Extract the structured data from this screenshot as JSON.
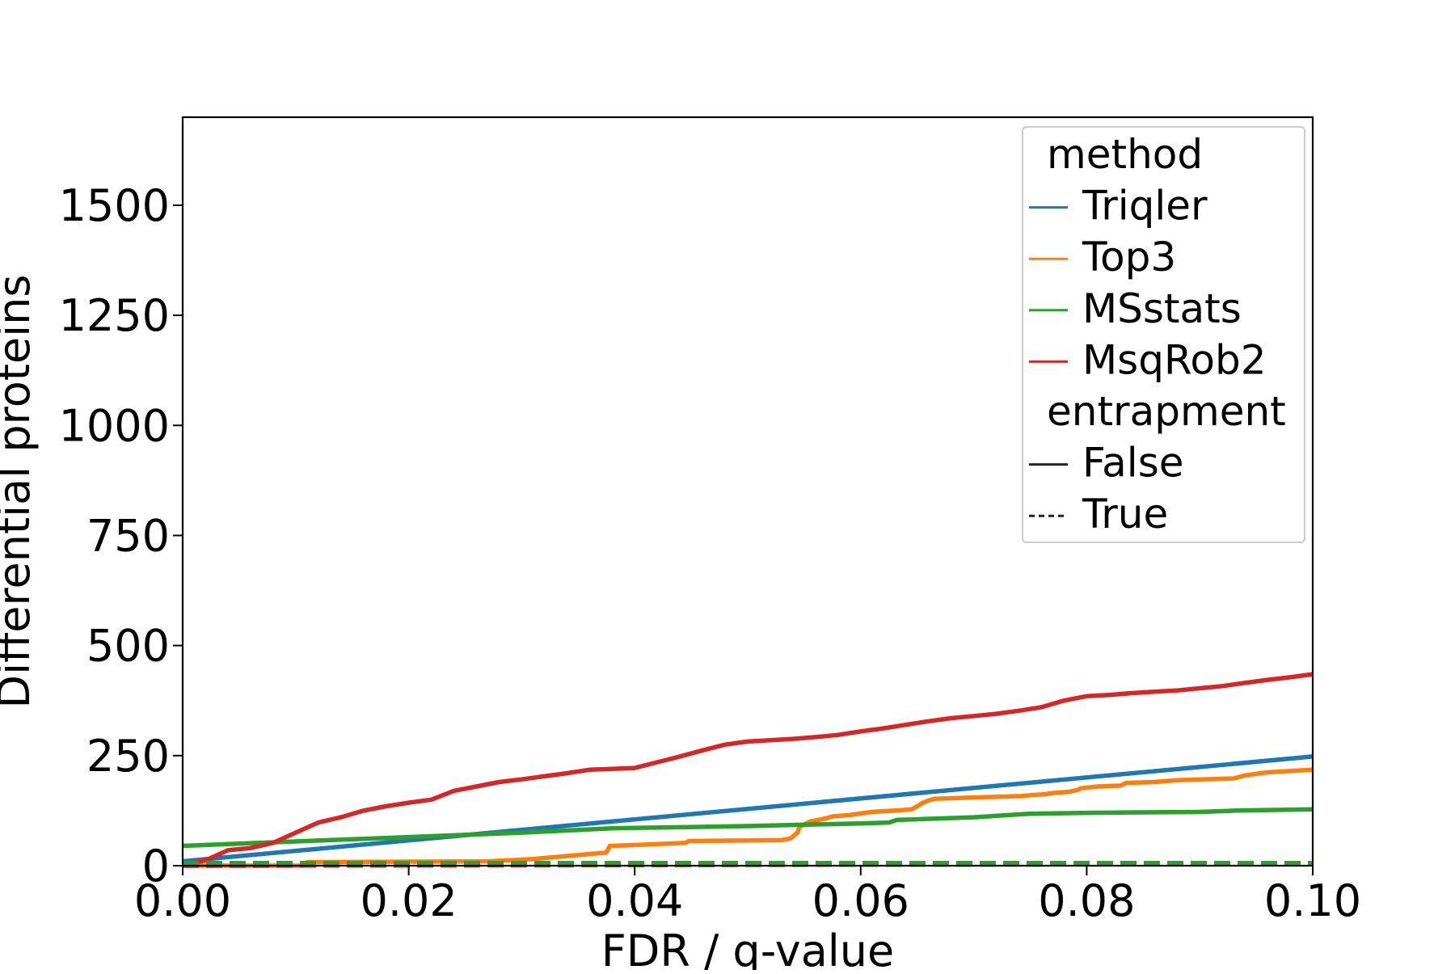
{
  "chart_data": {
    "type": "line",
    "title": "",
    "xlabel": "FDR / q-value",
    "ylabel": "Differential proteins",
    "xlim": [
      0.0,
      0.1
    ],
    "ylim": [
      0,
      1700
    ],
    "xticks": [
      "0.00",
      "0.02",
      "0.04",
      "0.06",
      "0.08",
      "0.10"
    ],
    "yticks": [
      "0",
      "250",
      "500",
      "750",
      "1000",
      "1250",
      "1500"
    ],
    "grid": false,
    "legend": {
      "placement": "top-right",
      "groups": [
        {
          "title": "method",
          "entries": [
            {
              "label": "Triqler",
              "color": "#1f77b4",
              "dash": "solid"
            },
            {
              "label": "Top3",
              "color": "#ff7f0e",
              "dash": "solid"
            },
            {
              "label": "MSstats",
              "color": "#2ca02c",
              "dash": "solid"
            },
            {
              "label": "MsqRob2",
              "color": "#d62728",
              "dash": "solid"
            }
          ]
        },
        {
          "title": "entrapment",
          "entries": [
            {
              "label": "False",
              "color": "#222222",
              "dash": "solid"
            },
            {
              "label": "True",
              "color": "#222222",
              "dash": "dashed"
            }
          ]
        }
      ]
    },
    "series": [
      {
        "name": "Triqler",
        "entrapment": "False",
        "color": "#1f77b4",
        "dash": "solid",
        "x": [
          0.0,
          0.1
        ],
        "y": [
          10,
          248
        ]
      },
      {
        "name": "Top3",
        "entrapment": "False",
        "color": "#ff7f0e",
        "dash": "solid",
        "x": [
          0.0,
          0.0105,
          0.011,
          0.027,
          0.031,
          0.0375,
          0.0378,
          0.041,
          0.0445,
          0.0448,
          0.053,
          0.0538,
          0.0544,
          0.0546,
          0.0555,
          0.057,
          0.0575,
          0.059,
          0.061,
          0.0635,
          0.0645,
          0.0648,
          0.0652,
          0.0655,
          0.066,
          0.0665,
          0.07,
          0.0742,
          0.075,
          0.0762,
          0.077,
          0.0785,
          0.0788,
          0.0792,
          0.0795,
          0.081,
          0.083,
          0.0835,
          0.086,
          0.088,
          0.09,
          0.093,
          0.094,
          0.096,
          0.1
        ],
        "y": [
          0,
          0,
          8,
          10,
          15,
          30,
          45,
          48,
          52,
          56,
          58,
          62,
          75,
          88,
          100,
          108,
          112,
          115,
          122,
          126,
          128,
          132,
          138,
          143,
          148,
          152,
          155,
          158,
          160,
          162,
          165,
          168,
          170,
          172,
          176,
          180,
          182,
          188,
          190,
          194,
          196,
          198,
          205,
          212,
          218
        ]
      },
      {
        "name": "MSstats",
        "entrapment": "False",
        "color": "#2ca02c",
        "dash": "solid",
        "x": [
          0.0,
          0.01,
          0.02,
          0.03,
          0.038,
          0.05,
          0.055,
          0.06,
          0.0625,
          0.0632,
          0.07,
          0.075,
          0.08,
          0.09,
          0.093,
          0.1
        ],
        "y": [
          45,
          55,
          65,
          75,
          85,
          90,
          93,
          96,
          98,
          104,
          110,
          118,
          120,
          122,
          125,
          128
        ]
      },
      {
        "name": "MsqRob2",
        "entrapment": "False",
        "color": "#d62728",
        "dash": "solid",
        "x": [
          0.0,
          0.002,
          0.004,
          0.006,
          0.008,
          0.01,
          0.012,
          0.014,
          0.016,
          0.018,
          0.02,
          0.022,
          0.024,
          0.026,
          0.028,
          0.03,
          0.032,
          0.034,
          0.036,
          0.038,
          0.04,
          0.042,
          0.044,
          0.046,
          0.048,
          0.05,
          0.052,
          0.054,
          0.056,
          0.058,
          0.06,
          0.062,
          0.064,
          0.066,
          0.068,
          0.07,
          0.072,
          0.074,
          0.076,
          0.078,
          0.08,
          0.082,
          0.084,
          0.086,
          0.088,
          0.09,
          0.092,
          0.094,
          0.096,
          0.098,
          0.1
        ],
        "y": [
          2,
          12,
          35,
          40,
          52,
          75,
          98,
          110,
          125,
          135,
          143,
          150,
          170,
          180,
          190,
          196,
          203,
          210,
          218,
          220,
          222,
          235,
          248,
          262,
          275,
          282,
          285,
          288,
          292,
          297,
          305,
          312,
          320,
          328,
          335,
          340,
          345,
          352,
          360,
          375,
          385,
          388,
          392,
          395,
          398,
          403,
          408,
          415,
          422,
          428,
          435
        ]
      },
      {
        "name": "Triqler",
        "entrapment": "True",
        "color": "#1f77b4",
        "dash": "dashed",
        "x": [
          0.0,
          0.1
        ],
        "y": [
          0,
          4
        ]
      },
      {
        "name": "Top3",
        "entrapment": "True",
        "color": "#ff7f0e",
        "dash": "dashed",
        "x": [
          0.0,
          0.1
        ],
        "y": [
          0,
          4
        ]
      },
      {
        "name": "MsqRob2",
        "entrapment": "True",
        "color": "#d62728",
        "dash": "dashed",
        "x": [
          0.0,
          0.1
        ],
        "y": [
          0,
          5
        ]
      },
      {
        "name": "MSstats",
        "entrapment": "True",
        "color": "#2ca02c",
        "dash": "dashed",
        "x": [
          0.0,
          0.1
        ],
        "y": [
          6,
          6
        ]
      }
    ]
  }
}
